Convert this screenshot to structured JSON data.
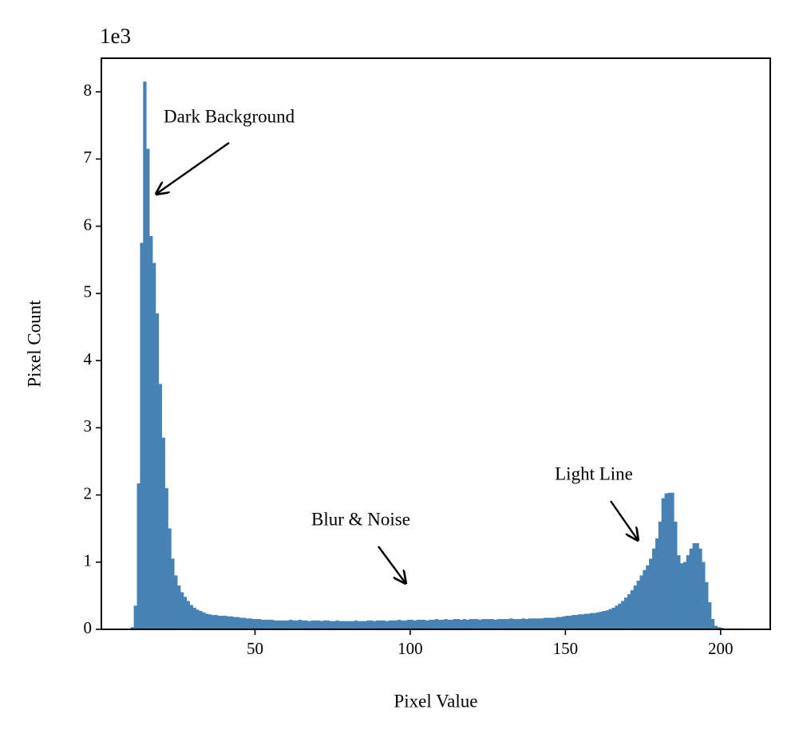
{
  "chart_data": {
    "type": "histogram",
    "xlabel": "Pixel Value",
    "ylabel": "Pixel Count",
    "offset_label": "1e3",
    "color": "#4682b4",
    "bins": [
      10,
      11,
      12,
      13,
      14,
      15,
      16,
      17,
      18,
      19,
      20,
      21,
      22,
      23,
      24,
      25,
      26,
      27,
      28,
      29,
      30,
      31,
      32,
      33,
      34,
      35,
      36,
      37,
      38,
      39,
      40,
      41,
      42,
      43,
      44,
      45,
      46,
      47,
      48,
      49,
      50,
      51,
      52,
      53,
      54,
      55,
      56,
      57,
      58,
      59,
      60,
      61,
      62,
      63,
      64,
      65,
      66,
      67,
      68,
      69,
      70,
      71,
      72,
      73,
      74,
      75,
      76,
      77,
      78,
      79,
      80,
      81,
      82,
      83,
      84,
      85,
      86,
      87,
      88,
      89,
      90,
      91,
      92,
      93,
      94,
      95,
      96,
      97,
      98,
      99,
      100,
      101,
      102,
      103,
      104,
      105,
      106,
      107,
      108,
      109,
      110,
      111,
      112,
      113,
      114,
      115,
      116,
      117,
      118,
      119,
      120,
      121,
      122,
      123,
      124,
      125,
      126,
      127,
      128,
      129,
      130,
      131,
      132,
      133,
      134,
      135,
      136,
      137,
      138,
      139,
      140,
      141,
      142,
      143,
      144,
      145,
      146,
      147,
      148,
      149,
      150,
      151,
      152,
      153,
      154,
      155,
      156,
      157,
      158,
      159,
      160,
      161,
      162,
      163,
      164,
      165,
      166,
      167,
      168,
      169,
      170,
      171,
      172,
      173,
      174,
      175,
      176,
      177,
      178,
      179,
      180,
      181,
      182,
      183,
      184,
      185,
      186,
      187,
      188,
      189,
      190,
      191,
      192,
      193,
      194,
      195,
      196,
      197,
      198,
      199,
      200,
      201,
      202,
      203,
      204,
      205,
      206,
      207
    ],
    "values": [
      0.03,
      0.35,
      2.17,
      5.75,
      8.15,
      7.15,
      5.85,
      5.45,
      4.7,
      3.65,
      2.85,
      2.1,
      1.5,
      1.05,
      0.8,
      0.65,
      0.55,
      0.48,
      0.42,
      0.36,
      0.32,
      0.29,
      0.27,
      0.25,
      0.23,
      0.22,
      0.21,
      0.21,
      0.2,
      0.2,
      0.2,
      0.19,
      0.19,
      0.18,
      0.18,
      0.17,
      0.17,
      0.16,
      0.16,
      0.15,
      0.15,
      0.15,
      0.14,
      0.14,
      0.14,
      0.14,
      0.13,
      0.13,
      0.13,
      0.13,
      0.13,
      0.14,
      0.13,
      0.13,
      0.14,
      0.13,
      0.13,
      0.12,
      0.13,
      0.13,
      0.13,
      0.12,
      0.13,
      0.13,
      0.12,
      0.12,
      0.13,
      0.12,
      0.12,
      0.12,
      0.12,
      0.12,
      0.13,
      0.12,
      0.12,
      0.12,
      0.13,
      0.13,
      0.12,
      0.13,
      0.13,
      0.13,
      0.12,
      0.13,
      0.13,
      0.13,
      0.14,
      0.13,
      0.13,
      0.14,
      0.14,
      0.13,
      0.14,
      0.14,
      0.14,
      0.13,
      0.14,
      0.14,
      0.15,
      0.14,
      0.14,
      0.15,
      0.14,
      0.14,
      0.15,
      0.15,
      0.14,
      0.15,
      0.14,
      0.15,
      0.15,
      0.15,
      0.14,
      0.15,
      0.15,
      0.15,
      0.15,
      0.14,
      0.15,
      0.15,
      0.15,
      0.15,
      0.16,
      0.15,
      0.15,
      0.15,
      0.16,
      0.15,
      0.16,
      0.16,
      0.16,
      0.16,
      0.16,
      0.17,
      0.17,
      0.17,
      0.17,
      0.18,
      0.18,
      0.19,
      0.2,
      0.2,
      0.21,
      0.21,
      0.22,
      0.22,
      0.23,
      0.23,
      0.24,
      0.24,
      0.25,
      0.26,
      0.27,
      0.28,
      0.3,
      0.32,
      0.35,
      0.38,
      0.42,
      0.47,
      0.52,
      0.58,
      0.65,
      0.72,
      0.8,
      0.88,
      0.95,
      1.05,
      1.2,
      1.35,
      1.6,
      1.95,
      2.02,
      2.03,
      2.03,
      1.6,
      1.1,
      0.98,
      1.0,
      1.1,
      1.2,
      1.28,
      1.28,
      1.2,
      1.0,
      0.7,
      0.4,
      0.15,
      0.05,
      0.03,
      0.02,
      0.01,
      0.01,
      0.01,
      0.01,
      0.01,
      0.01
    ],
    "xlim": [
      0.5,
      216
    ],
    "ylim": [
      0,
      8.5
    ],
    "xticks": [
      50,
      100,
      150,
      200
    ],
    "yticks": [
      0,
      1,
      2,
      3,
      4,
      5,
      6,
      7,
      8
    ],
    "annotations": [
      "Dark Background",
      "Blur & Noise",
      "Light Line"
    ]
  }
}
